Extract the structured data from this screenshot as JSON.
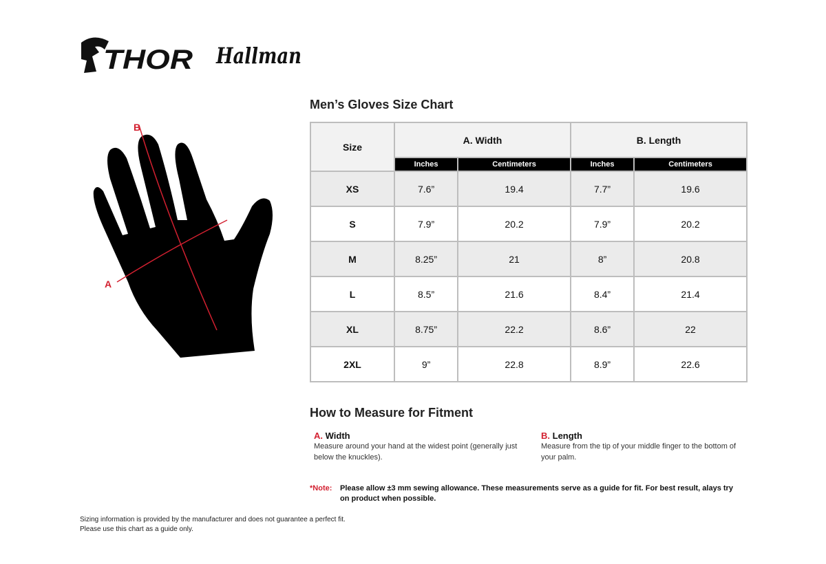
{
  "brands": {
    "logo1": "THOR",
    "logo2": "Hallman"
  },
  "hand": {
    "label_a": "A",
    "label_b": "B"
  },
  "chart": {
    "title": "Men’s Gloves Size Chart",
    "size_header": "Size",
    "group_a": "A. Width",
    "group_b": "B. Length",
    "units": [
      "Inches",
      "Centimeters",
      "Inches",
      "Centimeters"
    ],
    "rows": [
      {
        "size": "XS",
        "a_in": "7.6”",
        "a_cm": "19.4",
        "b_in": "7.7”",
        "b_cm": "19.6"
      },
      {
        "size": "S",
        "a_in": "7.9”",
        "a_cm": "20.2",
        "b_in": "7.9”",
        "b_cm": "20.2"
      },
      {
        "size": "M",
        "a_in": "8.25”",
        "a_cm": "21",
        "b_in": "8”",
        "b_cm": "20.8"
      },
      {
        "size": "L",
        "a_in": "8.5”",
        "a_cm": "21.6",
        "b_in": "8.4”",
        "b_cm": "21.4"
      },
      {
        "size": "XL",
        "a_in": "8.75”",
        "a_cm": "22.2",
        "b_in": "8.6”",
        "b_cm": "22"
      },
      {
        "size": "2XL",
        "a_in": "9”",
        "a_cm": "22.8",
        "b_in": "8.9”",
        "b_cm": "22.6"
      }
    ]
  },
  "measure": {
    "title": "How to Measure for Fitment",
    "a": {
      "letter": "A.",
      "name": "Width",
      "text": "Measure around your hand at the widest point (generally just below the knuckles)."
    },
    "b": {
      "letter": "B.",
      "name": "Length",
      "text": "Measure from the tip of your middle finger to the bottom of your palm."
    }
  },
  "note": {
    "key": "*Note:",
    "text": "Please allow ±3 mm sewing allowance. These measurements serve as a guide for fit. For best result, alays try on product when possible."
  },
  "footer": {
    "line1": "Sizing information is provided by the manufacturer and does not guarantee a perfect fit.",
    "line2": "Please use this chart as a guide only."
  },
  "colors": {
    "accent": "#d32030",
    "header_bg": "#000000",
    "row_alt": "#ebebeb"
  }
}
